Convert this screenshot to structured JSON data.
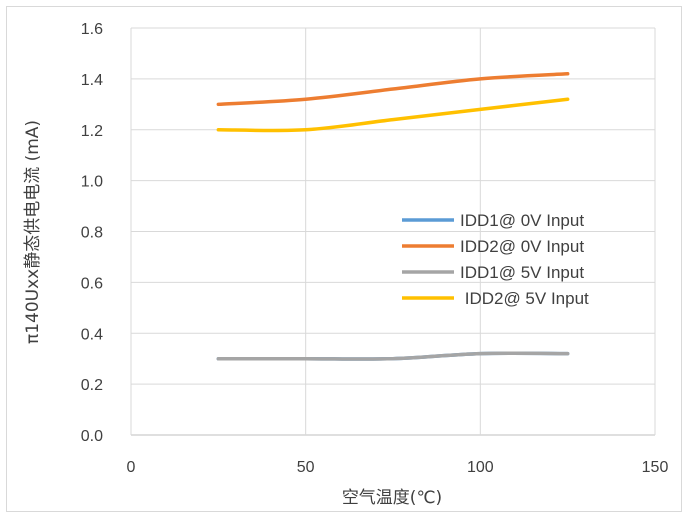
{
  "chart_data": {
    "type": "line",
    "title": "",
    "xlabel": "空气温度(℃)",
    "ylabel": "π140Uxx静态供电电流 (mA)",
    "xlim": [
      0,
      150
    ],
    "ylim": [
      0,
      1.6
    ],
    "x_ticks": [
      "0",
      "50",
      "100",
      "150"
    ],
    "y_ticks": [
      "0.0",
      "0.2",
      "0.4",
      "0.6",
      "0.8",
      "1.0",
      "1.2",
      "1.4",
      "1.6"
    ],
    "grid": true,
    "legend_position": "right-center",
    "series": [
      {
        "name": "IDD1@ 0V Input",
        "color": "#5B9BD5",
        "x": [
          25,
          50,
          75,
          100,
          125
        ],
        "y": [
          0.3,
          0.3,
          0.3,
          0.32,
          0.32
        ]
      },
      {
        "name": "IDD2@ 0V Input",
        "color": "#ED7D31",
        "x": [
          25,
          50,
          75,
          100,
          125
        ],
        "y": [
          1.3,
          1.32,
          1.36,
          1.4,
          1.42
        ]
      },
      {
        "name": "IDD1@ 5V Input",
        "color": "#A5A5A5",
        "x": [
          25,
          50,
          75,
          100,
          125
        ],
        "y": [
          0.3,
          0.3,
          0.3,
          0.32,
          0.32
        ]
      },
      {
        "name": " IDD2@ 5V Input",
        "color": "#FFC000",
        "x": [
          25,
          50,
          75,
          100,
          125
        ],
        "y": [
          1.2,
          1.2,
          1.24,
          1.28,
          1.32
        ]
      }
    ]
  }
}
